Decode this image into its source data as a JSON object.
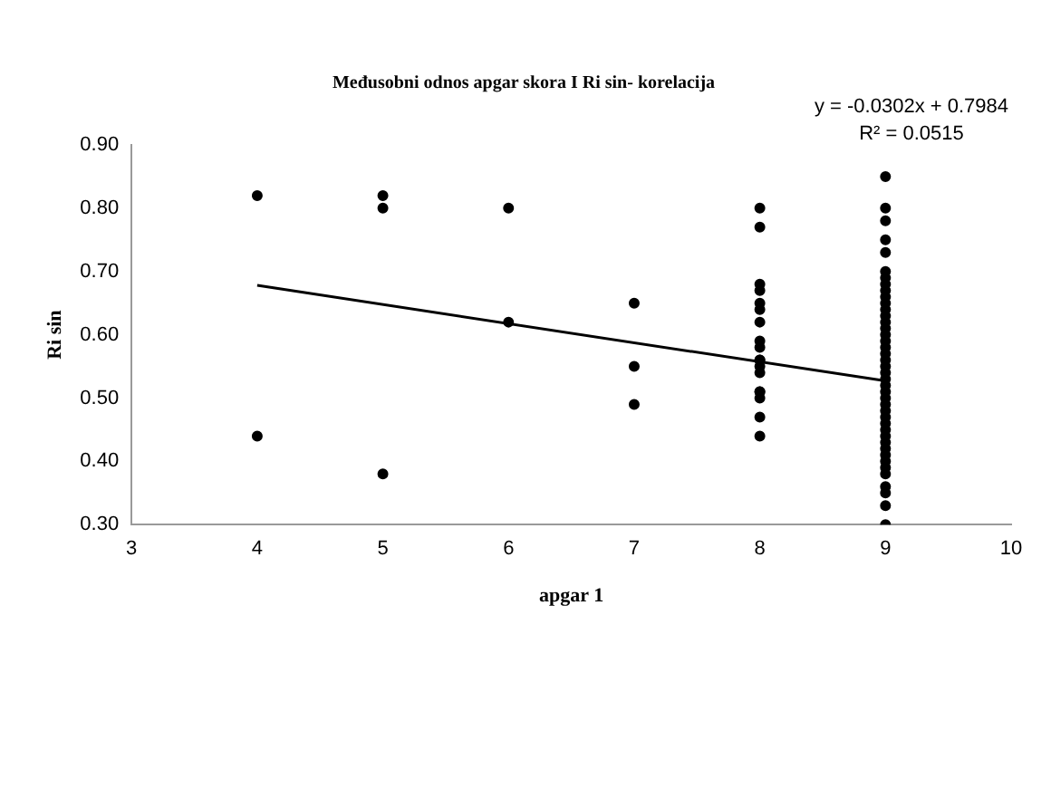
{
  "chart_data": {
    "type": "scatter",
    "title": "Međusobni odnos apgar skora I Ri sin- korelacija",
    "xlabel": "apgar 1",
    "ylabel": "Ri sin",
    "annotations": [
      "y = -0.0302x + 0.7984",
      "R² = 0.0515"
    ],
    "series": [
      {
        "type": "scatter",
        "color": "#000000",
        "marker": "circle",
        "x": [
          4,
          4,
          5,
          5,
          5,
          6,
          6,
          7,
          7,
          7,
          8,
          8,
          8,
          8,
          8,
          8,
          8,
          8,
          8,
          8,
          8,
          8,
          8,
          8,
          8,
          8,
          8,
          8,
          9,
          9,
          9,
          9,
          9,
          9,
          9,
          9,
          9,
          9,
          9,
          9,
          9,
          9,
          9,
          9,
          9,
          9,
          9,
          9,
          9,
          9,
          9,
          9,
          9,
          9,
          9,
          9,
          9,
          9,
          9,
          9,
          9,
          9,
          9,
          9,
          9,
          9,
          9,
          9,
          9,
          9
        ],
        "values": [
          0.82,
          0.44,
          0.82,
          0.8,
          0.38,
          0.8,
          0.62,
          0.65,
          0.55,
          0.49,
          0.8,
          0.77,
          0.68,
          0.67,
          0.65,
          0.64,
          0.62,
          0.59,
          0.58,
          0.56,
          0.56,
          0.55,
          0.54,
          0.51,
          0.51,
          0.5,
          0.47,
          0.44,
          0.85,
          0.8,
          0.78,
          0.75,
          0.73,
          0.7,
          0.69,
          0.68,
          0.67,
          0.66,
          0.65,
          0.64,
          0.63,
          0.62,
          0.61,
          0.6,
          0.59,
          0.58,
          0.57,
          0.56,
          0.55,
          0.54,
          0.53,
          0.52,
          0.51,
          0.5,
          0.49,
          0.48,
          0.47,
          0.46,
          0.45,
          0.44,
          0.43,
          0.42,
          0.41,
          0.4,
          0.39,
          0.38,
          0.36,
          0.35,
          0.33,
          0.3
        ]
      },
      {
        "type": "line",
        "color": "#000000",
        "marker": "none",
        "x": [
          4,
          9
        ],
        "values": [
          0.678,
          0.527
        ]
      }
    ],
    "xlim": [
      3,
      10
    ],
    "xticks": [
      3,
      4,
      5,
      6,
      7,
      8,
      9,
      10
    ],
    "ylim": [
      0.3,
      0.9
    ],
    "yticks": [
      {
        "value": 0.3,
        "label": "0.30"
      },
      {
        "value": 0.4,
        "label": "0.40"
      },
      {
        "value": 0.5,
        "label": "0.50"
      },
      {
        "value": 0.6,
        "label": "0.60"
      },
      {
        "value": 0.7,
        "label": "0.70"
      },
      {
        "value": 0.8,
        "label": "0.80"
      },
      {
        "value": 0.9,
        "label": "0.90"
      }
    ],
    "grid": false,
    "legend": false
  }
}
